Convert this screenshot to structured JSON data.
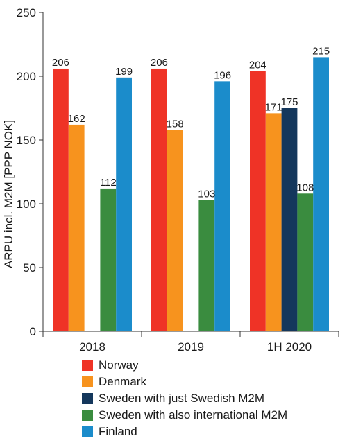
{
  "chart_data": {
    "type": "bar",
    "ylabel": "ARPU incl. M2M [PPP NOK]",
    "xlabel": "",
    "ylim": [
      0,
      250
    ],
    "yticks": [
      0,
      50,
      100,
      150,
      200,
      250
    ],
    "categories": [
      "2018",
      "2019",
      "1H 2020"
    ],
    "series": [
      {
        "name": "Norway",
        "color": "#ef3326",
        "values": [
          206,
          206,
          204
        ]
      },
      {
        "name": "Denmark",
        "color": "#f7931e",
        "values": [
          162,
          158,
          171
        ]
      },
      {
        "name": "Sweden with just Swedish M2M",
        "color": "#14375c",
        "values": [
          null,
          null,
          175
        ]
      },
      {
        "name": "Sweden with also international M2M",
        "color": "#3a8c3f",
        "values": [
          112,
          103,
          108
        ]
      },
      {
        "name": "Finland",
        "color": "#1b8ccb",
        "values": [
          199,
          196,
          215
        ]
      }
    ],
    "grid": false,
    "legend_position": "bottom"
  }
}
